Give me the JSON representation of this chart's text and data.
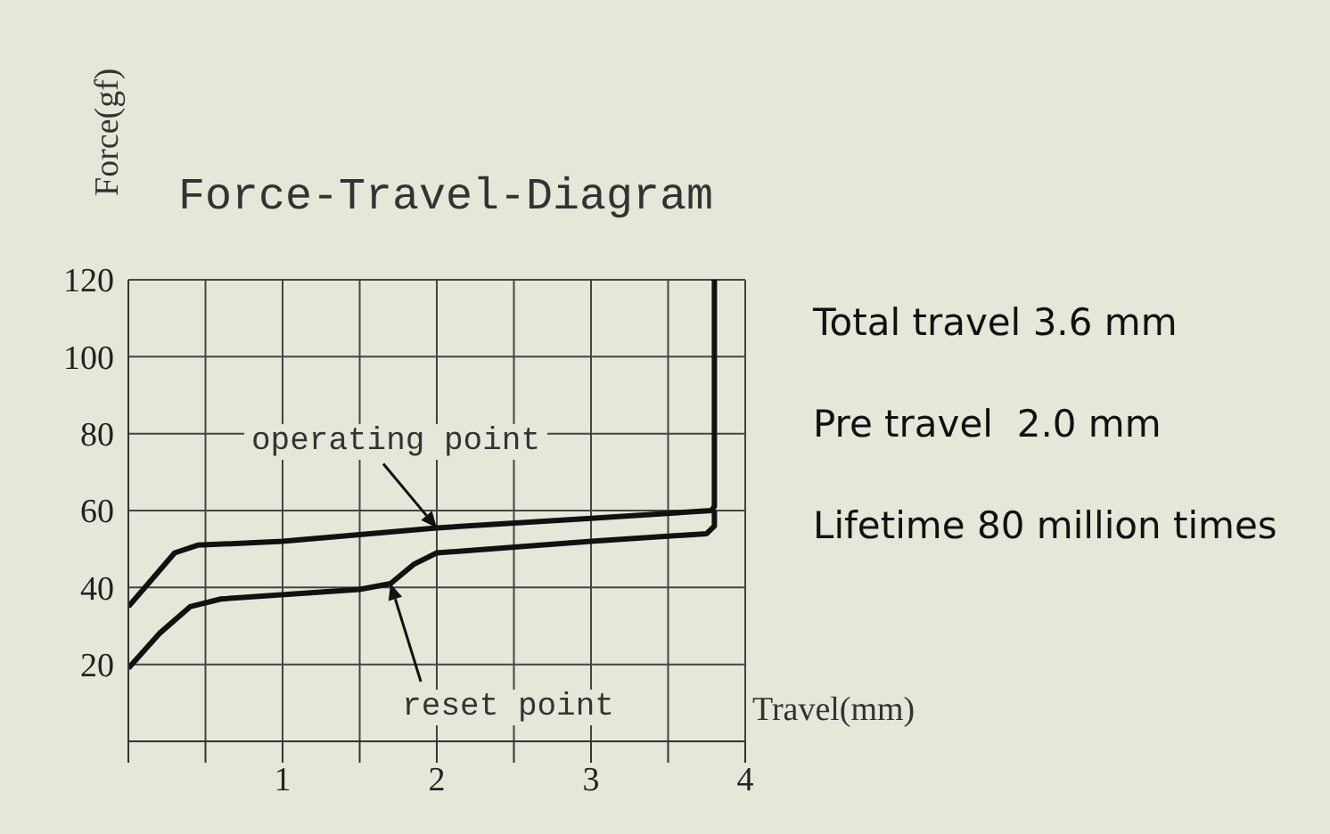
{
  "chart_data": {
    "type": "line",
    "title": "Force-Travel-Diagram",
    "xlabel": "Travel(mm)",
    "ylabel": "Force(gf)",
    "series": [
      {
        "color": "#111111",
        "x": [
          0,
          0.15,
          0.3,
          0.45,
          1,
          2,
          3,
          3.78,
          3.8,
          3.8
        ],
        "values": [
          35,
          42,
          49,
          51,
          52,
          55.5,
          58,
          60,
          61,
          120
        ]
      },
      {
        "color": "#111111",
        "x": [
          0,
          0.2,
          0.4,
          0.6,
          1.5,
          1.7,
          1.85,
          2,
          3,
          3.75,
          3.8,
          3.8
        ],
        "values": [
          19,
          28,
          35,
          37,
          39.5,
          41,
          46,
          49,
          52,
          54,
          56,
          60
        ]
      }
    ],
    "xlim": [
      0,
      4
    ],
    "ylim": [
      0,
      120
    ],
    "xticks": [
      {
        "value": 0,
        "label": null
      },
      {
        "value": 0.5,
        "label": null
      },
      1,
      {
        "value": 1.5,
        "label": null
      },
      2,
      {
        "value": 2.5,
        "label": null
      },
      3,
      {
        "value": 3.5,
        "label": null
      },
      4
    ],
    "yticks": [
      20,
      40,
      60,
      80,
      100,
      120
    ],
    "grid": true,
    "marker": "none",
    "line_style": "solid",
    "legend": false,
    "annotations": [
      {
        "text": "operating point",
        "x": 2,
        "y": 55.5
      },
      {
        "text": "reset point",
        "x": 1.7,
        "y": 41
      },
      "Total travel 3.6 mm",
      "Pre travel  2.0 mm",
      "Lifetime 80 million times"
    ]
  }
}
